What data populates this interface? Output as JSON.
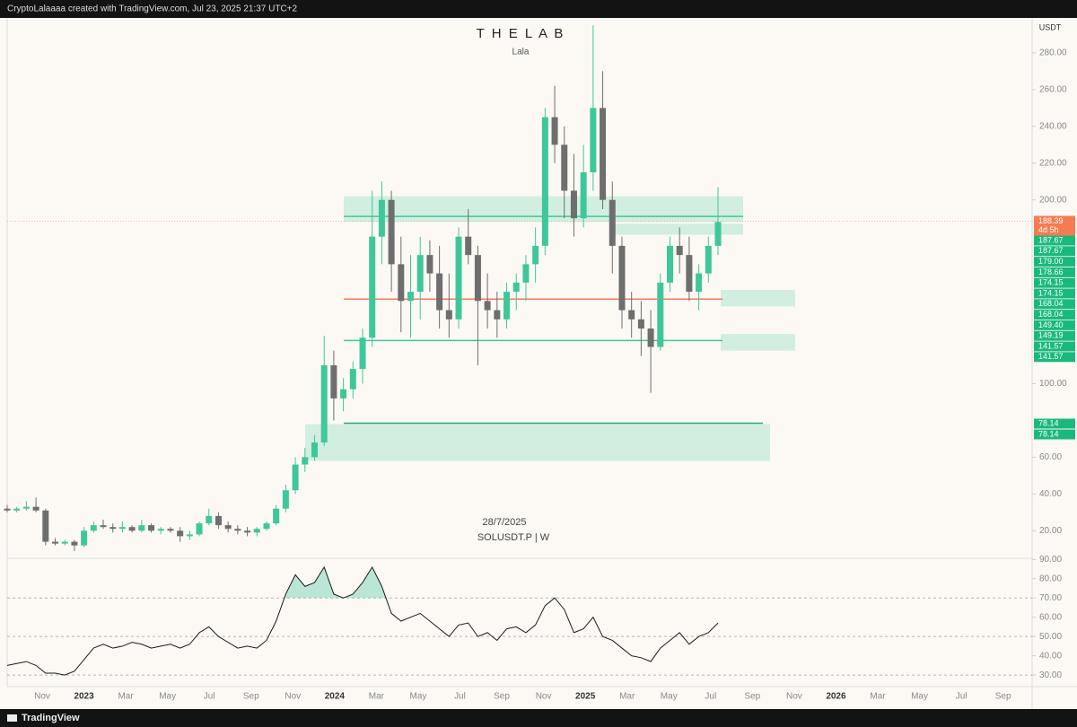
{
  "header": {
    "text": "CryptoLalaaaa created with TradingView.com, Jul 23, 2025 21:37 UTC+2"
  },
  "footer": {
    "brand": "TradingView"
  },
  "chart_data": [
    {
      "type": "candlestick",
      "title": "T H E L A B",
      "subtitle": "Lala",
      "annotations": [
        "28/7/2025",
        "SOLUSDT.P | W"
      ],
      "y_label": "USDT",
      "up_color": "#3ec79b",
      "down_color": "#6e6e6e",
      "ylim": [
        5,
        299
      ],
      "yticks": [
        {
          "value": 280,
          "label": "280.00"
        },
        {
          "value": 260,
          "label": "260.00"
        },
        {
          "value": 240,
          "label": "240.00"
        },
        {
          "value": 220,
          "label": "220.00"
        },
        {
          "value": 200,
          "label": "200.00"
        },
        {
          "value": 100,
          "label": "100.00"
        },
        {
          "value": 60,
          "label": "60.00"
        },
        {
          "value": 40,
          "label": "40.00"
        },
        {
          "value": 20,
          "label": "20.00"
        }
      ],
      "ohlc": [
        [
          32,
          34,
          30,
          31
        ],
        [
          31,
          33,
          30,
          32
        ],
        [
          32,
          36,
          31,
          33
        ],
        [
          33,
          38,
          30,
          31
        ],
        [
          31,
          32,
          12,
          14
        ],
        [
          14,
          16,
          12,
          13
        ],
        [
          13,
          15,
          12,
          14
        ],
        [
          14,
          15,
          9,
          12
        ],
        [
          12,
          22,
          11,
          20
        ],
        [
          20,
          25,
          19,
          23
        ],
        [
          23,
          26,
          21,
          22
        ],
        [
          22,
          24,
          19,
          21
        ],
        [
          21,
          25,
          19,
          22
        ],
        [
          22,
          23,
          19,
          20
        ],
        [
          20,
          26,
          19,
          23
        ],
        [
          23,
          24,
          19,
          20
        ],
        [
          20,
          22,
          18,
          21
        ],
        [
          21,
          22,
          19,
          20
        ],
        [
          20,
          22,
          14,
          17
        ],
        [
          17,
          20,
          15,
          18
        ],
        [
          18,
          25,
          17,
          24
        ],
        [
          24,
          32,
          23,
          28
        ],
        [
          28,
          30,
          21,
          23
        ],
        [
          23,
          25,
          19,
          21
        ],
        [
          21,
          23,
          18,
          20
        ],
        [
          20,
          22,
          17,
          19
        ],
        [
          19,
          22,
          17,
          21
        ],
        [
          21,
          25,
          20,
          24
        ],
        [
          24,
          34,
          23,
          32
        ],
        [
          32,
          45,
          30,
          42
        ],
        [
          42,
          60,
          40,
          56
        ],
        [
          56,
          65,
          52,
          60
        ],
        [
          60,
          72,
          58,
          68
        ],
        [
          68,
          126,
          66,
          110
        ],
        [
          110,
          118,
          80,
          92
        ],
        [
          92,
          103,
          85,
          97
        ],
        [
          97,
          112,
          92,
          108
        ],
        [
          108,
          130,
          100,
          125
        ],
        [
          125,
          205,
          120,
          180
        ],
        [
          180,
          210,
          165,
          200
        ],
        [
          200,
          205,
          150,
          165
        ],
        [
          165,
          180,
          128,
          145
        ],
        [
          145,
          170,
          125,
          150
        ],
        [
          150,
          180,
          135,
          170
        ],
        [
          170,
          178,
          150,
          160
        ],
        [
          160,
          175,
          130,
          140
        ],
        [
          140,
          160,
          125,
          135
        ],
        [
          135,
          185,
          130,
          180
        ],
        [
          180,
          195,
          165,
          170
        ],
        [
          170,
          175,
          110,
          145
        ],
        [
          145,
          160,
          130,
          140
        ],
        [
          140,
          150,
          125,
          135
        ],
        [
          135,
          155,
          130,
          150
        ],
        [
          150,
          160,
          140,
          155
        ],
        [
          155,
          170,
          145,
          165
        ],
        [
          165,
          185,
          155,
          175
        ],
        [
          175,
          250,
          170,
          245
        ],
        [
          245,
          262,
          220,
          230
        ],
        [
          230,
          240,
          190,
          205
        ],
        [
          205,
          225,
          180,
          190
        ],
        [
          190,
          230,
          185,
          215
        ],
        [
          215,
          295,
          205,
          250
        ],
        [
          250,
          270,
          195,
          200
        ],
        [
          200,
          210,
          160,
          175
        ],
        [
          175,
          180,
          130,
          140
        ],
        [
          140,
          150,
          125,
          135
        ],
        [
          135,
          145,
          115,
          130
        ],
        [
          130,
          140,
          95,
          120
        ],
        [
          120,
          160,
          118,
          155
        ],
        [
          155,
          180,
          150,
          175
        ],
        [
          175,
          185,
          160,
          170
        ],
        [
          170,
          180,
          145,
          150
        ],
        [
          150,
          165,
          140,
          160
        ],
        [
          160,
          180,
          155,
          175
        ],
        [
          175,
          207,
          170,
          188
        ]
      ],
      "zones": [
        [
          202,
          188
        ],
        [
          187,
          181
        ],
        [
          151,
          142
        ],
        [
          127,
          118
        ],
        [
          78,
          58
        ]
      ],
      "zone_color": "#3ec79b",
      "levels": [
        {
          "value": 191,
          "color": "#3ec79b"
        },
        {
          "value": 146,
          "color": "#f2795a"
        },
        {
          "value": 123.5,
          "color": "#3ec79b"
        },
        {
          "value": 78.5,
          "color": "#1fae78"
        }
      ],
      "last_price": {
        "value": 188.39,
        "label": "188.39"
      },
      "last_color": "#f57c52",
      "countdown": "4d 5h",
      "price_tags": [
        "187.67",
        "187.67",
        "179.00",
        "178.66",
        "174.15",
        "174.15",
        "168.04",
        "168.04",
        "149.40",
        "149.19",
        "141.57",
        "141.57",
        "78.14",
        "78.14"
      ],
      "tag_color": "#19b97c",
      "time_labels": [
        "Nov",
        "2023",
        "Mar",
        "May",
        "Jul",
        "Sep",
        "Nov",
        "2024",
        "Mar",
        "May",
        "Jul",
        "Sep",
        "Nov",
        "2025",
        "Mar",
        "May",
        "Jul",
        "Sep",
        "Nov",
        "2026",
        "Mar",
        "May",
        "Jul",
        "Sep"
      ]
    },
    {
      "type": "line",
      "color": "#1a1a1a",
      "fill_color": "#3ec79b",
      "values": [
        35,
        36,
        37,
        35,
        31,
        31,
        30,
        32,
        38,
        44,
        46,
        44,
        45,
        47,
        46,
        44,
        45,
        46,
        44,
        46,
        52,
        55,
        50,
        47,
        44,
        45,
        44,
        48,
        58,
        72,
        82,
        76,
        78,
        86,
        72,
        70,
        72,
        78,
        86,
        76,
        62,
        58,
        60,
        62,
        58,
        54,
        50,
        56,
        57,
        50,
        52,
        48,
        54,
        55,
        52,
        56,
        66,
        70,
        64,
        52,
        54,
        60,
        50,
        48,
        44,
        40,
        39,
        37,
        44,
        48,
        52,
        46,
        50,
        52,
        57
      ],
      "ylim": [
        24,
        92
      ],
      "yticks": [
        {
          "value": 90,
          "label": "90.00"
        },
        {
          "value": 80,
          "label": "80.00"
        },
        {
          "value": 70,
          "label": "70.00"
        },
        {
          "value": 60,
          "label": "60.00"
        },
        {
          "value": 50,
          "label": "50.00"
        },
        {
          "value": 40,
          "label": "40.00"
        },
        {
          "value": 30,
          "label": "30.00"
        }
      ],
      "levels": [
        70,
        50,
        30
      ]
    }
  ]
}
